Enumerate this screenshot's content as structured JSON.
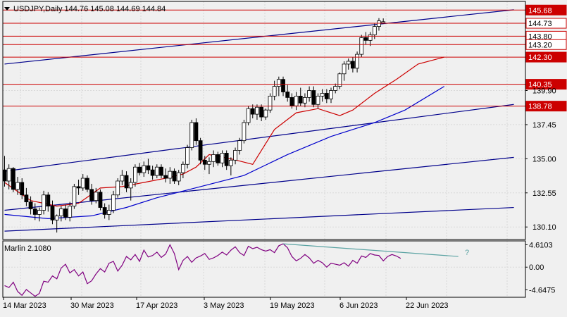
{
  "window": {
    "symbol_line": "USDJPY,Daily  144.76 145.08 144.69 144.84"
  },
  "colors": {
    "background": "#f0f0f0",
    "grid": "#d9d9d9",
    "candle_up": "#ffffff",
    "candle_down": "#000000",
    "ma_fast": "#cc0000",
    "ma_slow": "#0000cc",
    "channel": "#00008b",
    "level": "#cc0000",
    "marlin": "#800080",
    "divergence": "#5ba3a3",
    "label_bg_red": "#cc0000",
    "label_fg": "#ffffff"
  },
  "chart_data": [
    {
      "type": "candlestick",
      "title": "USDJPY,Daily  144.76 145.08 144.69 144.84",
      "x_tick_labels": [
        "14 Mar 2023",
        "30 Mar 2023",
        "17 Apr 2023",
        "3 May 2023",
        "19 May 2023",
        "6 Jun 2023",
        "22 Jun 2023"
      ],
      "y_tick_labels": [
        "130.10",
        "132.55",
        "135.00",
        "137.45",
        "139.90"
      ],
      "ylim": [
        129.2,
        146.3
      ],
      "grid": true,
      "levels": [
        {
          "label": "145.68",
          "value": 145.68,
          "highlight": true
        },
        {
          "label": "144.73",
          "value": 144.73,
          "highlight": false
        },
        {
          "label": "143.80",
          "value": 143.8,
          "highlight": false
        },
        {
          "label": "143.20",
          "value": 143.2,
          "highlight": false
        },
        {
          "label": "142.30",
          "value": 142.3,
          "highlight": true
        },
        {
          "label": "140.35",
          "value": 140.35,
          "highlight": true
        },
        {
          "label": "138.78",
          "value": 138.78,
          "highlight": true
        }
      ],
      "candles": [
        [
          134.2,
          135.2,
          133.0,
          133.4
        ],
        [
          133.4,
          134.6,
          132.8,
          134.3
        ],
        [
          134.3,
          134.4,
          132.6,
          132.8
        ],
        [
          132.8,
          133.7,
          132.4,
          133.3
        ],
        [
          133.3,
          133.6,
          132.1,
          132.4
        ],
        [
          132.4,
          132.9,
          131.6,
          131.9
        ],
        [
          131.9,
          132.3,
          131.0,
          131.4
        ],
        [
          131.4,
          131.8,
          130.6,
          131.0
        ],
        [
          131.0,
          131.5,
          130.5,
          131.3
        ],
        [
          131.3,
          132.7,
          131.0,
          132.4
        ],
        [
          132.4,
          132.6,
          131.2,
          131.6
        ],
        [
          131.6,
          132.0,
          130.3,
          130.6
        ],
        [
          130.6,
          131.0,
          129.7,
          130.9
        ],
        [
          130.9,
          131.6,
          130.5,
          131.4
        ],
        [
          131.4,
          131.7,
          130.6,
          130.8
        ],
        [
          130.8,
          131.9,
          130.5,
          131.6
        ],
        [
          131.6,
          133.2,
          131.4,
          133.0
        ],
        [
          133.0,
          133.5,
          132.4,
          132.9
        ],
        [
          132.9,
          133.9,
          132.7,
          133.6
        ],
        [
          133.6,
          133.8,
          132.6,
          132.8
        ],
        [
          132.8,
          133.2,
          131.7,
          132.0
        ],
        [
          132.0,
          132.9,
          131.8,
          132.6
        ],
        [
          132.6,
          132.8,
          131.3,
          131.5
        ],
        [
          131.5,
          131.8,
          130.7,
          131.0
        ],
        [
          131.0,
          131.7,
          130.6,
          131.3
        ],
        [
          131.3,
          132.7,
          131.1,
          132.4
        ],
        [
          132.4,
          133.6,
          132.2,
          133.4
        ],
        [
          133.4,
          134.2,
          133.1,
          133.8
        ],
        [
          133.8,
          134.1,
          132.6,
          132.9
        ],
        [
          132.9,
          133.6,
          132.0,
          133.3
        ],
        [
          133.3,
          134.6,
          133.0,
          134.4
        ],
        [
          134.4,
          134.7,
          133.8,
          134.0
        ],
        [
          134.0,
          134.8,
          133.7,
          134.5
        ],
        [
          134.5,
          135.0,
          133.9,
          134.2
        ],
        [
          134.2,
          134.5,
          133.5,
          133.8
        ],
        [
          133.8,
          134.6,
          133.6,
          134.4
        ],
        [
          134.4,
          134.6,
          133.6,
          133.8
        ],
        [
          133.8,
          134.3,
          133.3,
          133.6
        ],
        [
          133.6,
          134.4,
          133.2,
          134.1
        ],
        [
          134.1,
          134.3,
          133.2,
          133.4
        ],
        [
          133.4,
          134.2,
          133.1,
          134.0
        ],
        [
          134.0,
          134.8,
          133.6,
          134.6
        ],
        [
          134.6,
          136.0,
          134.3,
          135.8
        ],
        [
          135.8,
          137.8,
          135.6,
          137.6
        ],
        [
          137.6,
          137.9,
          136.0,
          136.3
        ],
        [
          136.3,
          136.5,
          134.6,
          134.9
        ],
        [
          134.9,
          135.2,
          134.2,
          134.6
        ],
        [
          134.6,
          135.1,
          133.9,
          134.8
        ],
        [
          134.8,
          135.6,
          134.4,
          135.3
        ],
        [
          135.3,
          135.5,
          134.5,
          134.7
        ],
        [
          134.7,
          135.6,
          134.4,
          135.4
        ],
        [
          135.4,
          135.6,
          134.2,
          134.5
        ],
        [
          134.5,
          135.1,
          133.8,
          134.9
        ],
        [
          134.9,
          135.8,
          134.6,
          135.6
        ],
        [
          135.6,
          136.5,
          135.3,
          136.3
        ],
        [
          136.3,
          137.8,
          136.1,
          137.6
        ],
        [
          137.6,
          138.8,
          137.4,
          138.6
        ],
        [
          138.6,
          138.9,
          137.9,
          138.2
        ],
        [
          138.2,
          138.9,
          137.8,
          138.7
        ],
        [
          138.7,
          138.9,
          137.7,
          138.0
        ],
        [
          138.0,
          138.6,
          137.8,
          138.5
        ],
        [
          138.5,
          139.7,
          138.3,
          139.5
        ],
        [
          139.5,
          140.6,
          139.2,
          140.2
        ],
        [
          140.2,
          140.9,
          139.5,
          140.7
        ],
        [
          140.7,
          140.9,
          139.5,
          139.8
        ],
        [
          139.8,
          140.3,
          139.1,
          139.4
        ],
        [
          139.4,
          139.7,
          138.6,
          138.8
        ],
        [
          138.8,
          139.8,
          138.5,
          139.5
        ],
        [
          139.5,
          140.1,
          138.8,
          139.0
        ],
        [
          139.0,
          139.7,
          138.7,
          139.4
        ],
        [
          139.4,
          140.2,
          139.1,
          139.9
        ],
        [
          139.9,
          140.2,
          138.7,
          138.9
        ],
        [
          138.9,
          139.7,
          138.6,
          139.5
        ],
        [
          139.5,
          140.0,
          139.1,
          139.7
        ],
        [
          139.7,
          140.0,
          139.0,
          139.3
        ],
        [
          139.3,
          140.1,
          139.0,
          139.9
        ],
        [
          139.9,
          140.4,
          139.7,
          140.2
        ],
        [
          140.2,
          141.2,
          140.0,
          141.1
        ],
        [
          141.1,
          142.0,
          140.6,
          141.8
        ],
        [
          141.8,
          142.2,
          141.4,
          142.0
        ],
        [
          142.0,
          142.3,
          141.2,
          141.5
        ],
        [
          141.5,
          142.7,
          141.2,
          142.5
        ],
        [
          142.5,
          143.9,
          142.3,
          143.7
        ],
        [
          143.7,
          144.1,
          143.2,
          143.5
        ],
        [
          143.5,
          144.1,
          143.1,
          143.9
        ],
        [
          143.9,
          144.7,
          143.6,
          144.5
        ],
        [
          144.5,
          145.1,
          144.2,
          144.9
        ],
        [
          144.76,
          145.08,
          144.69,
          144.84
        ]
      ],
      "ma_fast": [
        [
          0,
          133.3
        ],
        [
          6,
          132.0
        ],
        [
          12,
          131.6
        ],
        [
          17,
          131.8
        ],
        [
          22,
          132.9
        ],
        [
          27,
          133.0
        ],
        [
          32,
          133.3
        ],
        [
          37,
          133.6
        ],
        [
          41,
          133.9
        ],
        [
          44,
          134.4
        ],
        [
          47,
          135.3
        ],
        [
          52,
          135.0
        ],
        [
          57,
          134.6
        ],
        [
          62,
          137.1
        ],
        [
          67,
          138.3
        ],
        [
          72,
          138.6
        ],
        [
          77,
          138.1
        ],
        [
          80,
          138.5
        ],
        [
          85,
          139.7
        ],
        [
          90,
          140.7
        ],
        [
          95,
          141.8
        ],
        [
          101,
          142.3
        ]
      ],
      "ma_slow": [
        [
          0,
          131.0
        ],
        [
          10,
          130.7
        ],
        [
          20,
          130.9
        ],
        [
          28,
          131.5
        ],
        [
          35,
          132.2
        ],
        [
          45,
          133.0
        ],
        [
          55,
          133.8
        ],
        [
          65,
          135.3
        ],
        [
          75,
          136.6
        ],
        [
          85,
          137.6
        ],
        [
          92,
          138.5
        ],
        [
          101,
          140.2
        ]
      ],
      "channel_lines": [
        [
          [
            0,
            134.1
          ],
          [
            117,
            138.9
          ]
        ],
        [
          [
            0,
            141.8
          ],
          [
            117,
            145.7
          ]
        ],
        [
          [
            0,
            131.3
          ],
          [
            117,
            135.1
          ]
        ],
        [
          [
            0,
            129.8
          ],
          [
            117,
            131.5
          ]
        ]
      ],
      "ylabel": "",
      "xlabel": ""
    },
    {
      "type": "line",
      "title": "Marlin 2.1080",
      "y_tick_labels": [
        "4.6103",
        "0.00",
        "-4.6475"
      ],
      "ylim": [
        -6.2,
        5.4
      ],
      "annotation": "?",
      "values": [
        -3.8,
        -4.2,
        -3.1,
        -5.0,
        -5.8,
        -4.6,
        -5.3,
        -6.0,
        -5.4,
        -2.9,
        -3.1,
        -1.8,
        -2.4,
        -0.2,
        0.6,
        -1.2,
        -0.5,
        -1.8,
        -1.0,
        -3.4,
        -2.8,
        -1.4,
        -0.3,
        -1.0,
        0.8,
        1.2,
        -0.8,
        0.4,
        2.2,
        1.5,
        2.6,
        1.2,
        3.5,
        2.1,
        2.4,
        3.1,
        2.0,
        2.7,
        4.6,
        2.8,
        -0.5,
        1.4,
        2.2,
        1.0,
        1.9,
        2.3,
        2.8,
        1.6,
        1.9,
        2.4,
        3.1,
        2.5,
        3.5,
        4.2,
        3.0,
        2.4,
        4.3,
        3.8,
        4.1,
        3.6,
        3.3,
        3.6,
        3.0,
        4.4,
        4.8,
        4.0,
        2.2,
        1.3,
        1.8,
        2.6,
        1.9,
        0.8,
        1.4,
        0.9,
        0.0,
        0.8,
        0.6,
        0.4,
        0.9,
        0.2,
        1.4,
        0.8,
        2.3,
        2.0,
        2.8,
        2.5,
        2.4,
        1.3,
        2.2,
        2.6,
        2.3,
        1.8
      ],
      "divergence_line": [
        [
          64,
          4.8
        ],
        [
          101,
          2.2
        ]
      ],
      "ylabel": "",
      "xlabel": ""
    }
  ]
}
